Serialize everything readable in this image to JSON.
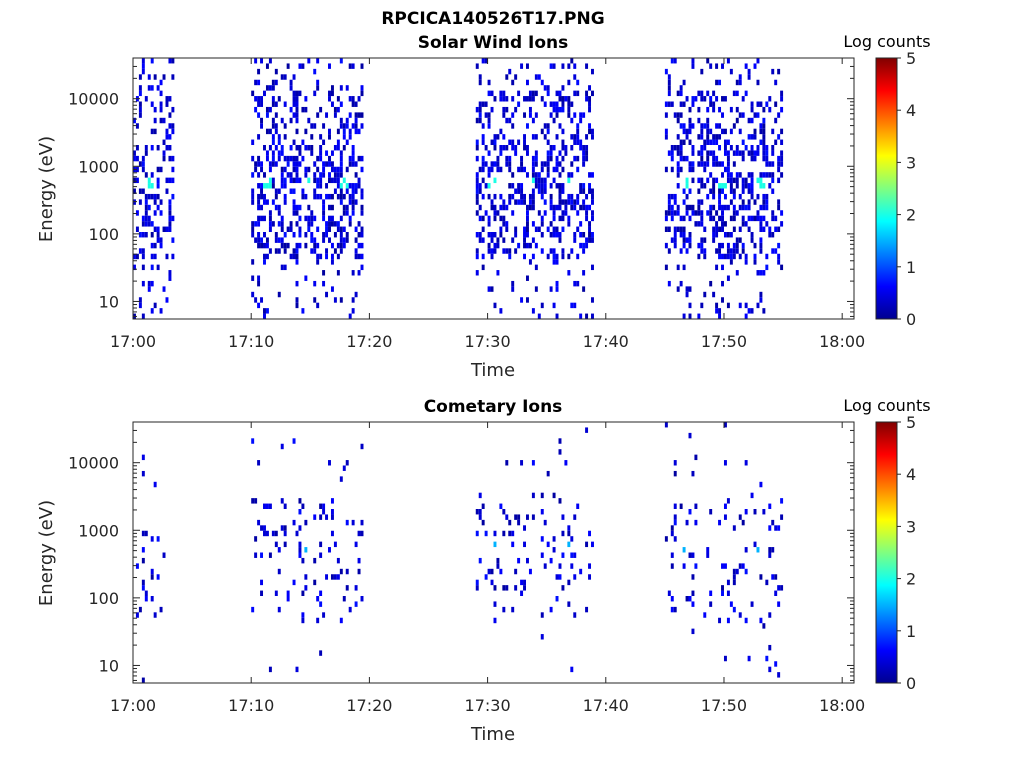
{
  "figure": {
    "title": "RPCICA140526T17.PNG"
  },
  "chart_data": [
    {
      "type": "heatmap",
      "title": "Solar Wind Ions",
      "xlabel": "Time",
      "ylabel": "Energy (eV)",
      "x_ticks": [
        "17:00",
        "17:10",
        "17:20",
        "17:30",
        "17:40",
        "17:50",
        "18:00"
      ],
      "x_range_minutes": [
        0,
        61
      ],
      "y_scale": "log",
      "y_ticks": [
        "10",
        "100",
        "1000",
        "10000"
      ],
      "y_range": [
        5.5,
        40000
      ],
      "colorbar": {
        "label": "Log counts",
        "min": 0,
        "max": 5,
        "ticks": [
          "0",
          "1",
          "2",
          "3",
          "4",
          "5"
        ],
        "colormap": "jet"
      },
      "active_intervals_minutes": [
        [
          0.0,
          3.5
        ],
        [
          10.0,
          19.3
        ],
        [
          29.0,
          39.0
        ],
        [
          45.0,
          54.8
        ]
      ],
      "peak_energy_eV": 600,
      "peak_times_minutes": [
        1.5,
        11.2,
        14.5,
        17.7,
        30.2,
        33.5,
        36.8,
        46.5,
        49.7,
        53.0
      ],
      "peak_log_counts": 2.0
    },
    {
      "type": "heatmap",
      "title": "Cometary Ions",
      "xlabel": "Time",
      "ylabel": "Energy (eV)",
      "x_ticks": [
        "17:00",
        "17:10",
        "17:20",
        "17:30",
        "17:40",
        "17:50",
        "18:00"
      ],
      "x_range_minutes": [
        0,
        61
      ],
      "y_scale": "log",
      "y_ticks": [
        "10",
        "100",
        "1000",
        "10000"
      ],
      "y_range": [
        5.5,
        40000
      ],
      "colorbar": {
        "label": "Log counts",
        "min": 0,
        "max": 5,
        "ticks": [
          "0",
          "1",
          "2",
          "3",
          "4",
          "5"
        ],
        "colormap": "jet"
      },
      "active_intervals_minutes": [
        [
          0.0,
          3.0
        ],
        [
          10.0,
          19.3
        ],
        [
          29.0,
          39.0
        ],
        [
          45.0,
          54.8
        ]
      ],
      "peak_energy_eV": 600,
      "peak_times_minutes": [
        1.5,
        11.2,
        14.5,
        17.7,
        30.2,
        33.5,
        36.8,
        46.5,
        49.7,
        53.0
      ],
      "peak_log_counts": 1.5
    }
  ]
}
